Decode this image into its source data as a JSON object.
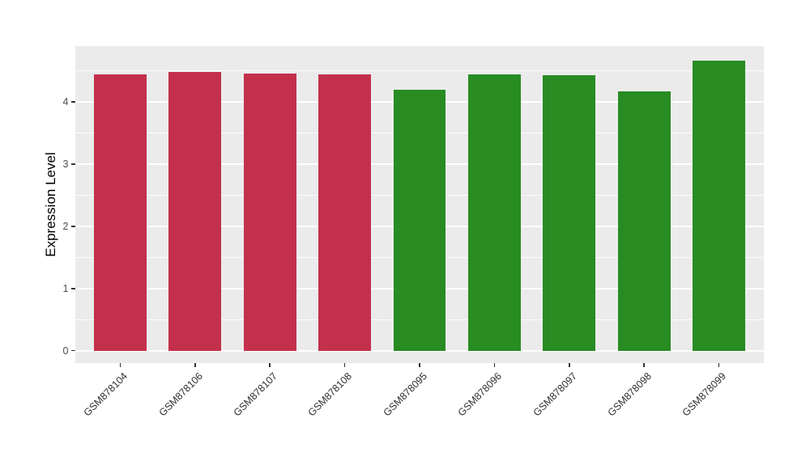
{
  "chart_data": {
    "type": "bar",
    "title": "",
    "xlabel": "",
    "ylabel": "Expression Level",
    "categories": [
      "GSM878104",
      "GSM878106",
      "GSM878107",
      "GSM878108",
      "GSM878095",
      "GSM878096",
      "GSM878097",
      "GSM878098",
      "GSM878099"
    ],
    "values": [
      4.44,
      4.48,
      4.46,
      4.44,
      4.2,
      4.45,
      4.43,
      4.17,
      4.67
    ],
    "bar_colors": [
      "#C3304B",
      "#C3304B",
      "#C3304B",
      "#C3304B",
      "#288C23",
      "#288C23",
      "#288C23",
      "#288C23",
      "#288C23"
    ],
    "color_groups": {
      "red": "#C3304B",
      "green": "#288C23"
    },
    "yticks": [
      0,
      1,
      2,
      3,
      4
    ],
    "yticks_minor": [
      0.5,
      1.5,
      2.5,
      3.5,
      4.5
    ],
    "ylim": [
      -0.2,
      4.9
    ],
    "bar_width_fraction": 0.7,
    "x_tick_label_angle": 45,
    "grid": true,
    "legend": "none",
    "panel_background": "#EBEBEB",
    "grid_color": "#FFFFFF",
    "tick_color": "#333333",
    "axis_text_color": "#4D4D4D"
  }
}
